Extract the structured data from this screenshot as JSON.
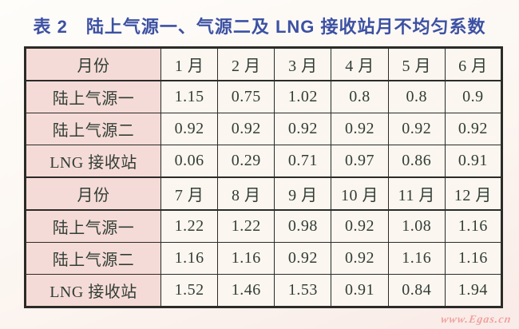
{
  "title": "表 2　陆上气源一、气源二及 LNG 接收站月不均匀系数",
  "watermark": "www.Egas.cn",
  "colors": {
    "title_blue": "#3c51a3",
    "label_pink": "#f5dbd7",
    "cell_cream": "#fbf6ef",
    "border_dark": "#2b2b28",
    "text_dark": "#313d35",
    "watermark_pink": "#f0a2a0"
  },
  "chart_data": {
    "type": "table",
    "title": "表 2　陆上气源一、气源二及 LNG 接收站月不均匀系数",
    "row_header_label": "月份",
    "sections": [
      {
        "header": [
          "月份",
          "1 月",
          "2 月",
          "3 月",
          "4 月",
          "5 月",
          "6 月"
        ],
        "rows": [
          {
            "label": "陆上气源一",
            "values": [
              "1.15",
              "0.75",
              "1.02",
              "0.8",
              "0.8",
              "0.9"
            ]
          },
          {
            "label": "陆上气源二",
            "values": [
              "0.92",
              "0.92",
              "0.92",
              "0.92",
              "0.92",
              "0.92"
            ]
          },
          {
            "label": "LNG 接收站",
            "values": [
              "0.06",
              "0.29",
              "0.71",
              "0.97",
              "0.86",
              "0.91"
            ]
          }
        ]
      },
      {
        "header": [
          "月份",
          "7 月",
          "8 月",
          "9 月",
          "10 月",
          "11 月",
          "12 月"
        ],
        "rows": [
          {
            "label": "陆上气源一",
            "values": [
              "1.22",
              "1.22",
              "0.98",
              "0.92",
              "1.08",
              "1.16"
            ]
          },
          {
            "label": "陆上气源二",
            "values": [
              "1.16",
              "1.16",
              "0.92",
              "0.92",
              "1.16",
              "1.16"
            ]
          },
          {
            "label": "LNG 接收站",
            "values": [
              "1.52",
              "1.46",
              "1.53",
              "0.91",
              "0.84",
              "1.94"
            ]
          }
        ]
      }
    ]
  }
}
